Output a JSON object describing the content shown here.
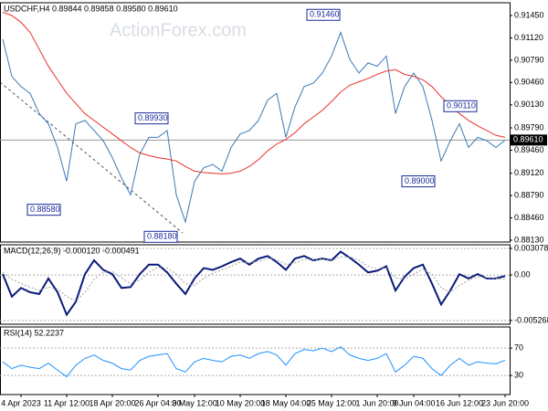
{
  "chart_data": [
    {
      "type": "line",
      "title": "USDCHF,H4 0.89844 0.89858 0.89580 0.89610",
      "watermark": "ActionForex.com",
      "ylim": [
        0.88103,
        0.91639
      ],
      "yticks": [
        {
          "value": 0.9145,
          "label": "0.91450"
        },
        {
          "value": 0.9112,
          "label": "0.91120"
        },
        {
          "value": 0.9079,
          "label": "0.90790"
        },
        {
          "value": 0.9046,
          "label": "0.90460"
        },
        {
          "value": 0.9013,
          "label": "0.90130"
        },
        {
          "value": 0.8979,
          "label": "0.89790"
        },
        {
          "value": 0.8946,
          "label": "0.89460"
        },
        {
          "value": 0.8912,
          "label": "0.89120"
        },
        {
          "value": 0.8879,
          "label": "0.88790"
        },
        {
          "value": 0.8846,
          "label": "0.88460"
        },
        {
          "value": 0.8813,
          "label": "0.88130"
        }
      ],
      "series": [
        {
          "color": "#3a78b5",
          "values": [
            0.911,
            0.9055,
            0.904,
            0.903,
            0.9,
            0.8985,
            0.895,
            0.89,
            0.8985,
            0.899,
            0.8975,
            0.896,
            0.8935,
            0.8905,
            0.888,
            0.894,
            0.8965,
            0.8965,
            0.8975,
            0.888,
            0.884,
            0.89,
            0.892,
            0.8925,
            0.8915,
            0.895,
            0.897,
            0.8975,
            0.899,
            0.902,
            0.903,
            0.8965,
            0.901,
            0.904,
            0.9045,
            0.906,
            0.9085,
            0.912,
            0.908,
            0.906,
            0.9075,
            0.907,
            0.9085,
            0.9,
            0.904,
            0.906,
            0.904,
            0.899,
            0.893,
            0.896,
            0.8985,
            0.895,
            0.8965,
            0.896,
            0.895,
            0.8961
          ]
        },
        {
          "color": "#e8302a",
          "values": [
            0.915,
            0.9145,
            0.9135,
            0.912,
            0.9095,
            0.907,
            0.905,
            0.903,
            0.9015,
            0.9,
            0.899,
            0.898,
            0.897,
            0.896,
            0.895,
            0.8942,
            0.8938,
            0.8935,
            0.8933,
            0.893,
            0.8922,
            0.8915,
            0.8913,
            0.8912,
            0.8911,
            0.8912,
            0.8915,
            0.8922,
            0.8932,
            0.8945,
            0.8955,
            0.8962,
            0.8972,
            0.8985,
            0.8995,
            0.9005,
            0.9018,
            0.9032,
            0.9042,
            0.9047,
            0.9052,
            0.9058,
            0.9063,
            0.9065,
            0.9058,
            0.9055,
            0.905,
            0.904,
            0.9025,
            0.9012,
            0.9,
            0.899,
            0.8982,
            0.8975,
            0.8968,
            0.8965
          ]
        }
      ],
      "annotations": [
        {
          "value": 0.8858,
          "label": "0.88580"
        },
        {
          "value": 0.8993,
          "label": "0.89930"
        },
        {
          "value": 0.8818,
          "label": "0.88180"
        },
        {
          "value": 0.9146,
          "label": "0.91460"
        },
        {
          "value": 0.9011,
          "label": "0.90110"
        },
        {
          "value": 0.89,
          "label": "0.89000"
        }
      ],
      "last_price": {
        "value": 0.8961,
        "label": "0.89610"
      }
    },
    {
      "type": "line",
      "title": "MACD(12,26,9) -0.000120 -0.000491",
      "ylim": [
        -0.0057,
        0.0035
      ],
      "yticks": [
        0.003078,
        {
          "value": 0,
          "label": "0.00"
        },
        -0.005268
      ],
      "series": [
        {
          "color": "#0a1a7a",
          "values": [
            0.0001,
            -0.0025,
            -0.0015,
            -0.002,
            -0.0022,
            -0.0004,
            -0.002,
            -0.0046,
            -0.0031,
            0.0001,
            0.0017,
            0.0006,
            0.0001,
            -0.0015,
            -0.0014,
            0.0001,
            0.0012,
            0.0012,
            0.0003,
            -0.001,
            -0.0022,
            -0.0004,
            0.0008,
            0.0006,
            0.001,
            0.0015,
            0.0019,
            0.0012,
            0.0019,
            0.0022,
            0.0015,
            0.0006,
            0.0019,
            0.0022,
            0.0017,
            0.0019,
            0.0017,
            0.0027,
            0.002,
            0.0012,
            0.0003,
            0.0005,
            0.001,
            -0.0018,
            -0.0002,
            0.0008,
            0.0012,
            -0.001,
            -0.0034,
            -0.0018,
            0.0001,
            -0.0004,
            0.0001,
            -0.0004,
            -0.0004,
            -0.00012
          ]
        },
        {
          "color": "#a0a0a0",
          "style": "dotted",
          "values": [
            0.0003,
            -0.0005,
            -0.001,
            -0.0014,
            -0.0018,
            -0.0014,
            -0.0016,
            -0.0025,
            -0.003,
            -0.002,
            -0.0005,
            0.0003,
            0.0004,
            -0.0003,
            -0.001,
            -0.0006,
            0.0003,
            0.0009,
            0.0008,
            0.0001,
            -0.001,
            -0.0012,
            -0.0004,
            0.0002,
            0.0006,
            0.001,
            0.0015,
            0.0014,
            0.0016,
            0.0019,
            0.0018,
            0.0012,
            0.0014,
            0.0018,
            0.0018,
            0.0018,
            0.0017,
            0.0021,
            0.0021,
            0.0017,
            0.001,
            0.0007,
            0.0008,
            -0.0003,
            -0.0005,
            0.0001,
            0.0007,
            0.0001,
            -0.0015,
            -0.002,
            -0.0012,
            -0.0006,
            -0.0002,
            -0.0003,
            -0.0004,
            -0.000491
          ]
        }
      ]
    },
    {
      "type": "line",
      "title": "RSI(14) 52.2237",
      "ylim": [
        2,
        101
      ],
      "yticks": [
        30,
        70
      ],
      "categories": [
        null,
        null,
        "4 Apr 2023",
        null,
        null,
        null,
        null,
        "11 Apr 12:00",
        null,
        null,
        null,
        null,
        "18 Apr 20:00",
        null,
        null,
        null,
        null,
        "26 Apr 04:00",
        null,
        null,
        null,
        "3 May 12:00",
        null,
        null,
        null,
        null,
        "10 May 20:00",
        null,
        null,
        null,
        null,
        "18 May 04:00",
        null,
        null,
        null,
        null,
        "25 May 12:00",
        null,
        null,
        null,
        null,
        "1 Jun 20:00",
        null,
        null,
        null,
        "9 Jun 04:00",
        null,
        null,
        null,
        null,
        "16 Jun 12:00",
        null,
        null,
        null,
        null,
        "23 Jun 20:00"
      ],
      "series": [
        {
          "color": "#1e90ff",
          "values": [
            50,
            40,
            45,
            42,
            40,
            48,
            38,
            28,
            45,
            55,
            60,
            52,
            48,
            40,
            38,
            52,
            58,
            60,
            62,
            40,
            35,
            50,
            55,
            52,
            50,
            58,
            60,
            55,
            62,
            65,
            60,
            45,
            62,
            68,
            66,
            70,
            65,
            72,
            60,
            55,
            52,
            55,
            62,
            35,
            45,
            58,
            55,
            40,
            30,
            45,
            55,
            45,
            50,
            48,
            47,
            52.2237
          ]
        }
      ]
    }
  ]
}
